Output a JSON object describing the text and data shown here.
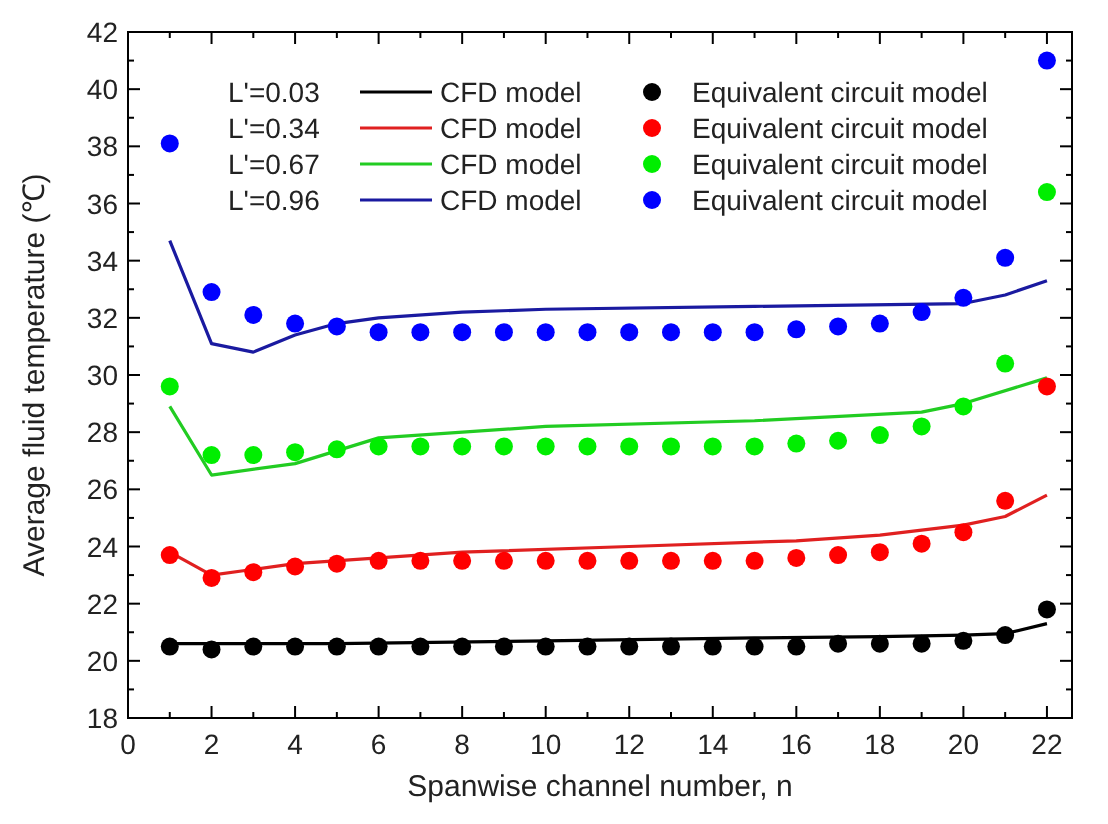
{
  "chart_data": {
    "type": "line",
    "xlabel": "Spanwise channel number, n",
    "ylabel": "Average fluid temperature (℃)",
    "xlim": [
      0,
      22.6
    ],
    "ylim": [
      18,
      42
    ],
    "xticks": [
      0,
      {
        "value": 1,
        "label": null
      },
      2,
      {
        "value": 3,
        "label": null
      },
      4,
      {
        "value": 5,
        "label": null
      },
      6,
      {
        "value": 7,
        "label": null
      },
      8,
      {
        "value": 9,
        "label": null
      },
      10,
      {
        "value": 11,
        "label": null
      },
      12,
      {
        "value": 13,
        "label": null
      },
      14,
      {
        "value": 15,
        "label": null
      },
      16,
      {
        "value": 17,
        "label": null
      },
      18,
      {
        "value": 19,
        "label": null
      },
      20,
      {
        "value": 21,
        "label": null
      },
      22
    ],
    "yticks": [
      18,
      {
        "value": 19,
        "label": null
      },
      20,
      {
        "value": 21,
        "label": null
      },
      22,
      {
        "value": 23,
        "label": null
      },
      24,
      {
        "value": 25,
        "label": null
      },
      26,
      {
        "value": 27,
        "label": null
      },
      28,
      {
        "value": 29,
        "label": null
      },
      30,
      {
        "value": 31,
        "label": null
      },
      32,
      {
        "value": 33,
        "label": null
      },
      34,
      {
        "value": 35,
        "label": null
      },
      36,
      {
        "value": 37,
        "label": null
      },
      38,
      {
        "value": 39,
        "label": null
      },
      40,
      {
        "value": 41,
        "label": null
      },
      42
    ],
    "legend": "top",
    "grid": false,
    "annotations": [
      "L'=0.03",
      "L'=0.34",
      "L'=0.67",
      "L'=0.96"
    ],
    "series": [
      {
        "name": "CFD model",
        "color": "#000000",
        "x": [
          1,
          2,
          5,
          10,
          15,
          18,
          20,
          21,
          22
        ],
        "values": [
          20.6,
          20.6,
          20.6,
          20.7,
          20.8,
          20.85,
          20.9,
          20.95,
          21.3
        ]
      },
      {
        "name": "CFD model",
        "color": "#e02020",
        "x": [
          1,
          2,
          4,
          6,
          8,
          12,
          16,
          18,
          20,
          21,
          22
        ],
        "values": [
          23.8,
          23.0,
          23.4,
          23.6,
          23.8,
          24.0,
          24.2,
          24.4,
          24.75,
          25.05,
          25.8
        ]
      },
      {
        "name": "CFD model",
        "color": "#22cc22",
        "x": [
          1,
          2,
          4,
          6,
          10,
          15,
          19,
          20,
          22
        ],
        "values": [
          28.9,
          26.5,
          26.9,
          27.8,
          28.2,
          28.4,
          28.7,
          29.0,
          29.9
        ]
      },
      {
        "name": "CFD model",
        "color": "#1a1aa0",
        "x": [
          1,
          2,
          3,
          4,
          5,
          6,
          8,
          10,
          15,
          20,
          21,
          22
        ],
        "values": [
          34.7,
          31.1,
          30.8,
          31.4,
          31.8,
          32.0,
          32.2,
          32.3,
          32.4,
          32.5,
          32.8,
          33.3
        ]
      },
      {
        "name": "Equivalent circuit model",
        "type": "scatter",
        "color": "#000000",
        "x": [
          1,
          2,
          3,
          4,
          5,
          6,
          7,
          8,
          9,
          10,
          11,
          12,
          13,
          14,
          15,
          16,
          17,
          18,
          19,
          20,
          21,
          22
        ],
        "values": [
          20.5,
          20.4,
          20.5,
          20.5,
          20.5,
          20.5,
          20.5,
          20.5,
          20.5,
          20.5,
          20.5,
          20.5,
          20.5,
          20.5,
          20.5,
          20.5,
          20.6,
          20.6,
          20.6,
          20.7,
          20.9,
          21.8
        ]
      },
      {
        "name": "Equivalent circuit model",
        "type": "scatter",
        "color": "#ff0000",
        "x": [
          1,
          2,
          3,
          4,
          5,
          6,
          7,
          8,
          9,
          10,
          11,
          12,
          13,
          14,
          15,
          16,
          17,
          18,
          19,
          20,
          21,
          22
        ],
        "values": [
          23.7,
          22.9,
          23.1,
          23.3,
          23.4,
          23.5,
          23.5,
          23.5,
          23.5,
          23.5,
          23.5,
          23.5,
          23.5,
          23.5,
          23.5,
          23.6,
          23.7,
          23.8,
          24.1,
          24.5,
          25.6,
          29.6
        ]
      },
      {
        "name": "Equivalent circuit model",
        "type": "scatter",
        "color": "#00ee00",
        "x": [
          1,
          2,
          3,
          4,
          5,
          6,
          7,
          8,
          9,
          10,
          11,
          12,
          13,
          14,
          15,
          16,
          17,
          18,
          19,
          20,
          21,
          22
        ],
        "values": [
          29.6,
          27.2,
          27.2,
          27.3,
          27.4,
          27.5,
          27.5,
          27.5,
          27.5,
          27.5,
          27.5,
          27.5,
          27.5,
          27.5,
          27.5,
          27.6,
          27.7,
          27.9,
          28.2,
          28.9,
          30.4,
          36.4
        ]
      },
      {
        "name": "Equivalent circuit model",
        "type": "scatter",
        "color": "#0000ff",
        "x": [
          1,
          2,
          3,
          4,
          5,
          6,
          7,
          8,
          9,
          10,
          11,
          12,
          13,
          14,
          15,
          16,
          17,
          18,
          19,
          20,
          21,
          22
        ],
        "values": [
          38.1,
          32.9,
          32.1,
          31.8,
          31.7,
          31.5,
          31.5,
          31.5,
          31.5,
          31.5,
          31.5,
          31.5,
          31.5,
          31.5,
          31.5,
          31.6,
          31.7,
          31.8,
          32.2,
          32.7,
          34.1,
          41.0
        ]
      }
    ]
  }
}
